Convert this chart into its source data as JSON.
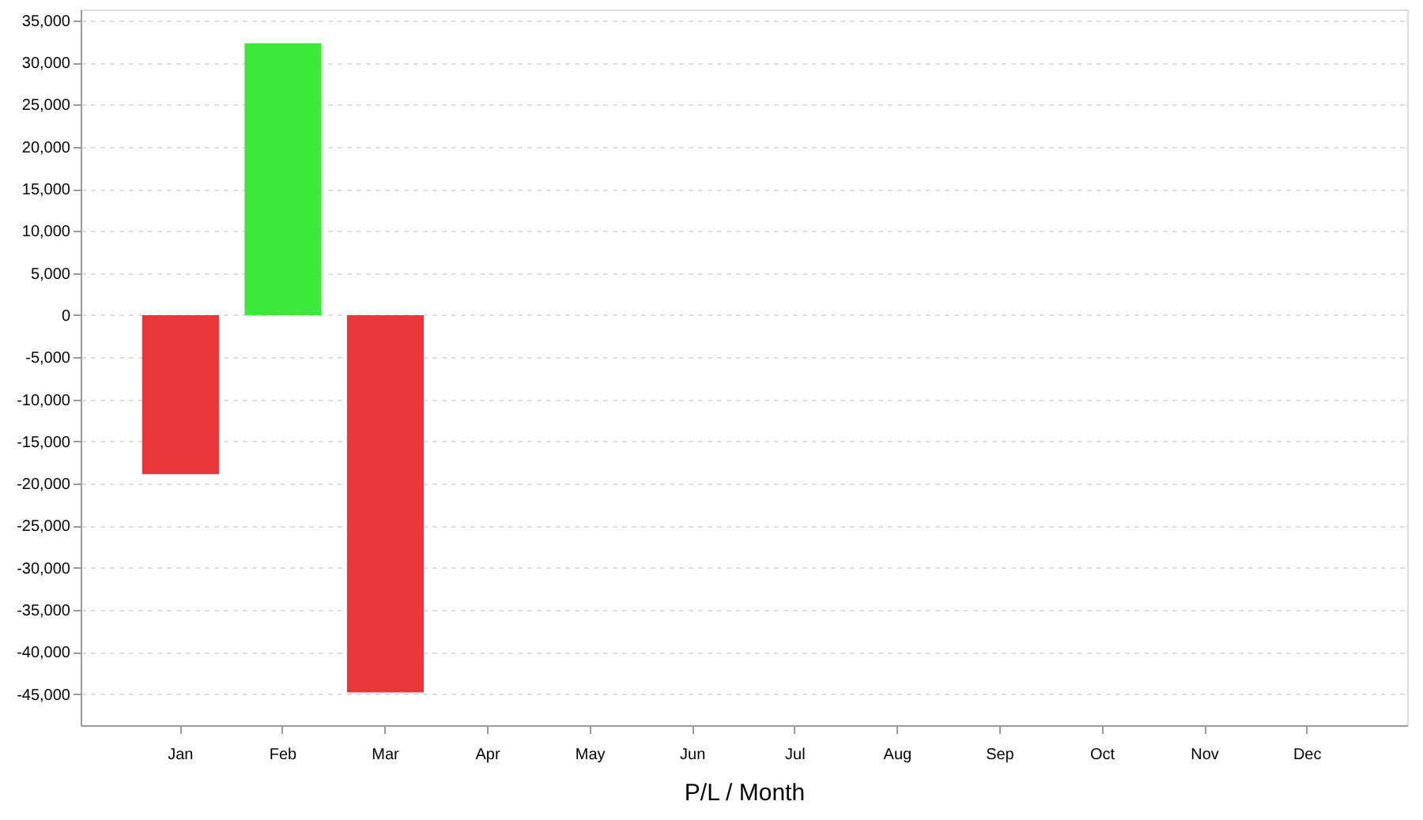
{
  "chart_data": {
    "type": "bar",
    "xlabel": "P/L / Month",
    "categories": [
      "Jan",
      "Feb",
      "Mar",
      "Apr",
      "May",
      "Jun",
      "Jul",
      "Aug",
      "Sep",
      "Oct",
      "Nov",
      "Dec"
    ],
    "values": [
      -18900,
      32300,
      -44800,
      null,
      null,
      null,
      null,
      null,
      null,
      null,
      null,
      null
    ],
    "colors": [
      "#e8363b",
      "#3de83a",
      "#e8363b",
      "#e8363b",
      "#e8363b",
      "#e8363b",
      "#e8363b",
      "#e8363b",
      "#e8363b",
      "#e8363b",
      "#e8363b",
      "#e8363b"
    ],
    "ylim": [
      -48700,
      36300
    ],
    "yticks": [
      {
        "value": -45000,
        "label": "-45,000"
      },
      {
        "value": -40000,
        "label": "-40,000"
      },
      {
        "value": -35000,
        "label": "-35,000"
      },
      {
        "value": -30000,
        "label": "-30,000"
      },
      {
        "value": -25000,
        "label": "-25,000"
      },
      {
        "value": -20000,
        "label": "-20,000"
      },
      {
        "value": -15000,
        "label": "-15,000"
      },
      {
        "value": -10000,
        "label": "-10,000"
      },
      {
        "value": -5000,
        "label": "-5,000"
      },
      0,
      {
        "value": 5000,
        "label": "5,000"
      },
      {
        "value": 10000,
        "label": "10,000"
      },
      {
        "value": 15000,
        "label": "15,000"
      },
      {
        "value": 20000,
        "label": "20,000"
      },
      {
        "value": 25000,
        "label": "25,000"
      },
      {
        "value": 30000,
        "label": "30,000"
      },
      {
        "value": 35000,
        "label": "35,000"
      }
    ],
    "grid": "y"
  }
}
